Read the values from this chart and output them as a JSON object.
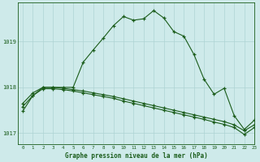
{
  "title": "Graphe pression niveau de la mer (hPa)",
  "background_color": "#ceeaea",
  "grid_color": "#aed4d4",
  "line_color": "#1a5c1a",
  "xlim": [
    -0.5,
    23
  ],
  "ylim": [
    1016.75,
    1019.85
  ],
  "yticks": [
    1017,
    1018,
    1019
  ],
  "xticks": [
    0,
    1,
    2,
    3,
    4,
    5,
    6,
    7,
    8,
    9,
    10,
    11,
    12,
    13,
    14,
    15,
    16,
    17,
    18,
    19,
    20,
    21,
    22,
    23
  ],
  "series1_x": [
    0,
    1,
    2,
    3,
    4,
    5,
    6,
    7,
    8,
    9,
    10,
    11,
    12,
    13,
    14,
    15,
    16,
    17,
    18,
    19,
    20,
    21,
    22,
    23
  ],
  "series1_y": [
    1017.65,
    1017.88,
    1018.0,
    1018.0,
    1017.98,
    1017.95,
    1017.92,
    1017.88,
    1017.84,
    1017.8,
    1017.75,
    1017.7,
    1017.65,
    1017.6,
    1017.55,
    1017.5,
    1017.45,
    1017.4,
    1017.35,
    1017.3,
    1017.25,
    1017.18,
    1017.05,
    1017.18
  ],
  "series2_x": [
    0,
    1,
    2,
    3,
    4,
    5,
    6,
    7,
    8,
    9,
    10,
    11,
    12,
    13,
    14,
    15,
    16,
    17,
    18,
    19,
    20,
    21,
    22,
    23
  ],
  "series2_y": [
    1017.58,
    1017.82,
    1017.97,
    1017.97,
    1017.95,
    1017.92,
    1017.88,
    1017.84,
    1017.8,
    1017.76,
    1017.7,
    1017.65,
    1017.6,
    1017.55,
    1017.5,
    1017.45,
    1017.4,
    1017.35,
    1017.3,
    1017.24,
    1017.19,
    1017.12,
    1016.97,
    1017.12
  ],
  "series3_x": [
    0,
    1,
    2,
    3,
    4,
    5,
    6,
    7,
    8,
    9,
    10,
    11,
    12,
    13,
    14,
    15,
    16,
    17,
    18,
    19,
    20,
    21,
    22,
    23
  ],
  "series3_y": [
    1017.48,
    1017.82,
    1018.0,
    1018.0,
    1018.0,
    1018.0,
    1018.55,
    1018.82,
    1019.08,
    1019.35,
    1019.55,
    1019.47,
    1019.5,
    1019.68,
    1019.52,
    1019.22,
    1019.12,
    1018.72,
    1018.18,
    1017.85,
    1017.98,
    1017.38,
    1017.08,
    1017.28
  ]
}
